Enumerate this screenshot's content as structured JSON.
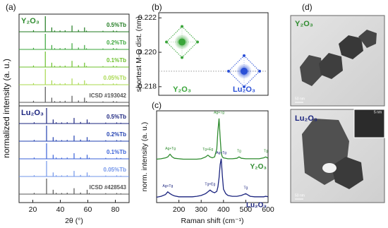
{
  "chart_data": [
    {
      "type": "xrd",
      "panel": "(a)",
      "ylabel": "normalized intensity (a. u.)",
      "xlabel": "2θ (°)",
      "xlim": [
        10,
        90
      ],
      "xticks": [
        20,
        40,
        60,
        80
      ],
      "groups": [
        {
          "name": "Y₂O₃",
          "color": "#2e8b2e",
          "x": [
            20.5,
            29.1,
            33.8,
            35.9,
            39.8,
            43.5,
            48.5,
            53.2,
            57.6,
            59.0,
            71.0,
            78.5,
            81.0
          ],
          "series": [
            {
              "name": "0.5%Tb",
              "color": "#1f7a1f",
              "values": [
                0.1,
                1,
                0.28,
                0.08,
                0.08,
                0.09,
                0.4,
                0.12,
                0.28,
                0.07,
                0.06,
                0.08,
                0.06
              ]
            },
            {
              "name": "0.2%Tb",
              "color": "#3aa53a",
              "values": [
                0.1,
                1,
                0.28,
                0.08,
                0.08,
                0.09,
                0.4,
                0.12,
                0.28,
                0.07,
                0.06,
                0.08,
                0.06
              ]
            },
            {
              "name": "0.1%Tb",
              "color": "#6cc02c",
              "values": [
                0.1,
                1,
                0.28,
                0.08,
                0.08,
                0.09,
                0.4,
                0.12,
                0.28,
                0.07,
                0.06,
                0.08,
                0.06
              ]
            },
            {
              "name": "0.05%Tb",
              "color": "#a8d84e",
              "values": [
                0.1,
                1,
                0.28,
                0.08,
                0.08,
                0.09,
                0.4,
                0.12,
                0.28,
                0.07,
                0.06,
                0.08,
                0.06
              ]
            },
            {
              "name": "ICSD #193042",
              "color": "#555555",
              "values": [
                0.1,
                1,
                0.3,
                0.08,
                0.08,
                0.1,
                0.42,
                0.12,
                0.3,
                0.08,
                0.06,
                0.08,
                0.06
              ]
            }
          ]
        },
        {
          "name": "Lu₂O₃",
          "color": "#1a237e",
          "x": [
            21.0,
            30.0,
            34.8,
            37.0,
            41.0,
            45.0,
            50.0,
            54.7,
            59.5,
            61.0,
            73.0,
            81.0,
            84.0
          ],
          "series": [
            {
              "name": "0.5%Tb",
              "color": "#1a237e",
              "values": [
                0.08,
                1,
                0.26,
                0.08,
                0.07,
                0.08,
                0.36,
                0.1,
                0.26,
                0.07,
                0.06,
                0.07,
                0.05
              ]
            },
            {
              "name": "0.2%Tb",
              "color": "#2140b0",
              "values": [
                0.08,
                1,
                0.26,
                0.08,
                0.07,
                0.08,
                0.36,
                0.1,
                0.26,
                0.07,
                0.06,
                0.07,
                0.05
              ]
            },
            {
              "name": "0.1%Tb",
              "color": "#3a62d8",
              "values": [
                0.08,
                1,
                0.26,
                0.08,
                0.07,
                0.08,
                0.36,
                0.1,
                0.26,
                0.07,
                0.06,
                0.07,
                0.05
              ]
            },
            {
              "name": "0.05%Tb",
              "color": "#7295ea",
              "values": [
                0.08,
                1,
                0.26,
                0.08,
                0.07,
                0.08,
                0.36,
                0.1,
                0.26,
                0.07,
                0.06,
                0.07,
                0.05
              ]
            },
            {
              "name": "ICSD #428543",
              "color": "#555555",
              "values": [
                0.08,
                1,
                0.28,
                0.08,
                0.07,
                0.09,
                0.38,
                0.1,
                0.28,
                0.07,
                0.06,
                0.07,
                0.05
              ]
            }
          ]
        }
      ]
    },
    {
      "type": "scatter",
      "panel": "(b)",
      "ylabel": "shortest M-O dist. (nm)",
      "categories": [
        "Y₂O₃",
        "Lu₂O₃"
      ],
      "values": [
        0.2206,
        0.2189
      ],
      "colors": [
        "#3aa53a",
        "#2a4fd6"
      ],
      "ylim": [
        0.2175,
        0.2223
      ],
      "yticks": [
        0.218,
        {
          "value": 0.22,
          "label": "0.220"
        },
        0.222
      ]
    },
    {
      "type": "line",
      "panel": "(c)",
      "ylabel": "norm. intensity (a. u.)",
      "xlabel": "Raman shift (cm⁻¹)",
      "xlim": [
        100,
        600
      ],
      "xticks": [
        200,
        300,
        400,
        500,
        600
      ],
      "ylim": [
        0,
        2.05
      ],
      "x": [
        100,
        120,
        140,
        150,
        160,
        170,
        180,
        200,
        220,
        240,
        260,
        280,
        300,
        320,
        330,
        340,
        350,
        360,
        370,
        375,
        380,
        385,
        390,
        395,
        400,
        410,
        420,
        440,
        460,
        470,
        480,
        500,
        520,
        540,
        560,
        580,
        590,
        600
      ],
      "series": [
        {
          "name": "Y₂O₃",
          "color": "#2e8b2e",
          "values": [
            0.97,
            0.98,
            1.0,
            1.02,
            1.08,
            1.02,
            0.99,
            0.98,
            0.97,
            0.97,
            0.97,
            0.97,
            0.98,
            1.02,
            1.06,
            1.02,
            1.0,
            1.02,
            1.2,
            1.6,
            1.88,
            1.45,
            1.1,
            1.02,
            1.0,
            0.99,
            0.98,
            0.98,
            0.99,
            1.02,
            0.99,
            0.98,
            0.98,
            0.98,
            0.98,
            1.0,
            1.02,
            0.99
          ]
        },
        {
          "name": "Lu₂O₃",
          "color": "#1a237e",
          "values": [
            0.12,
            0.14,
            0.18,
            0.24,
            0.2,
            0.17,
            0.15,
            0.13,
            0.13,
            0.13,
            0.13,
            0.14,
            0.16,
            0.2,
            0.24,
            0.28,
            0.24,
            0.22,
            0.25,
            0.35,
            0.55,
            0.85,
            0.98,
            0.6,
            0.3,
            0.2,
            0.16,
            0.14,
            0.14,
            0.15,
            0.16,
            0.2,
            0.14,
            0.13,
            0.13,
            0.13,
            0.14,
            0.13
          ]
        }
      ],
      "annotations": [
        {
          "text": "Ag+Tg",
          "x": 162,
          "series": 0
        },
        {
          "text": "Tg+Eg",
          "x": 330,
          "series": 0
        },
        {
          "text": "Ag+Tg",
          "x": 380,
          "series": 0
        },
        {
          "text": "Tg",
          "x": 470,
          "series": 0
        },
        {
          "text": "Tg",
          "x": 590,
          "series": 0
        },
        {
          "text": "Ag+Tg",
          "x": 150,
          "series": 1
        },
        {
          "text": "Tg+Eg",
          "x": 340,
          "series": 1
        },
        {
          "text": "Ag+Tg",
          "x": 390,
          "series": 1
        },
        {
          "text": "Tg",
          "x": 500,
          "series": 1
        }
      ]
    }
  ],
  "images": {
    "panel": "(d)",
    "top_label": "Y₂O₃",
    "bottom_label": "Lu₂O₃",
    "scale_top": "50 nm",
    "scale_bottom": "50 nm",
    "scale_inset": "5 nm"
  }
}
